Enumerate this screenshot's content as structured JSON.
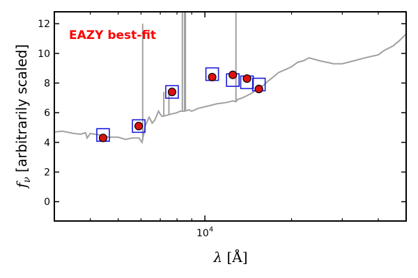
{
  "chart_data": {
    "type": "scatter",
    "xscale": "log",
    "xlim": [
      3000,
      50000
    ],
    "ylim": [
      -1.3,
      12.8
    ],
    "grid": false,
    "annotation": {
      "text": "EAZY best-fit",
      "color": "#ff0000",
      "placement": "top-left"
    },
    "xlabel": "λ [Å]",
    "ylabel": "f_ν [arbitrarily scaled]",
    "ylabel_parts": {
      "symbol": "f",
      "subscript": "ν",
      "rest": "[arbitrarily scaled]"
    },
    "xlabel_parts": {
      "lambda": "λ",
      "unit": "[Å]"
    },
    "xtick_labels": [
      {
        "value": 10000,
        "base": "10",
        "exp": "4"
      }
    ],
    "yticks": [
      0,
      2,
      4,
      6,
      8,
      10,
      12
    ],
    "colors": {
      "model": "#a0a0a0",
      "photometry": "#dd1111",
      "model_fluxes": "#1a1adb"
    },
    "series": [
      {
        "kind": "model_spectrum",
        "x": [
          3000,
          3200,
          3500,
          3700,
          3850,
          3900,
          4000,
          4300,
          4600,
          5000,
          5300,
          5600,
          5900,
          6000,
          6050,
          6080,
          6150,
          6200,
          6400,
          6562,
          6700,
          6900,
          7000,
          7100,
          7300,
          7600,
          8000,
          8200,
          8500,
          8800,
          9000,
          9500,
          10000,
          10500,
          11000,
          11500,
          12000,
          12500,
          12820,
          13000,
          13500,
          14000,
          14500,
          15000,
          15500,
          16000,
          16500,
          17000,
          17500,
          18000,
          19000,
          20000,
          21000,
          22000,
          23000,
          25000,
          28000,
          30000,
          33000,
          36000,
          40000,
          42000,
          45000,
          47000,
          50000
        ],
        "y": [
          4.7,
          4.75,
          4.6,
          4.55,
          4.65,
          4.3,
          4.6,
          4.5,
          4.35,
          4.35,
          4.2,
          4.3,
          4.3,
          4.1,
          4.0,
          4.2,
          4.7,
          5.1,
          5.7,
          5.3,
          5.5,
          6.1,
          5.9,
          5.75,
          5.8,
          5.9,
          6.0,
          6.1,
          6.1,
          6.2,
          6.1,
          6.3,
          6.4,
          6.5,
          6.6,
          6.65,
          6.7,
          6.8,
          6.75,
          6.9,
          7.0,
          7.15,
          7.3,
          7.5,
          7.7,
          7.85,
          8.1,
          8.3,
          8.5,
          8.7,
          8.9,
          9.1,
          9.4,
          9.5,
          9.7,
          9.5,
          9.3,
          9.3,
          9.5,
          9.7,
          9.9,
          10.2,
          10.5,
          10.8,
          11.3
        ]
      },
      {
        "kind": "emission_lines",
        "lines": [
          {
            "x": 6080,
            "y": 12.0
          },
          {
            "x": 7200,
            "y": 7.4
          },
          {
            "x": 7500,
            "y": 7.3
          },
          {
            "x": 8350,
            "y": 12.8
          },
          {
            "x": 8500,
            "y": 12.8
          },
          {
            "x": 8560,
            "y": 12.8
          },
          {
            "x": 12820,
            "y": 12.8
          }
        ]
      },
      {
        "kind": "model_band_fluxes",
        "points": [
          {
            "x": 4430,
            "y": 4.5
          },
          {
            "x": 5890,
            "y": 5.1
          },
          {
            "x": 7690,
            "y": 7.4
          },
          {
            "x": 10600,
            "y": 8.6
          },
          {
            "x": 12500,
            "y": 8.2
          },
          {
            "x": 14000,
            "y": 8.05
          },
          {
            "x": 15400,
            "y": 7.9
          }
        ]
      },
      {
        "kind": "observed_photometry",
        "points": [
          {
            "x": 4430,
            "y": 4.3
          },
          {
            "x": 5890,
            "y": 5.1
          },
          {
            "x": 7690,
            "y": 7.4
          },
          {
            "x": 10600,
            "y": 8.4
          },
          {
            "x": 12500,
            "y": 8.55
          },
          {
            "x": 14000,
            "y": 8.3
          },
          {
            "x": 15400,
            "y": 7.6
          }
        ]
      }
    ]
  }
}
